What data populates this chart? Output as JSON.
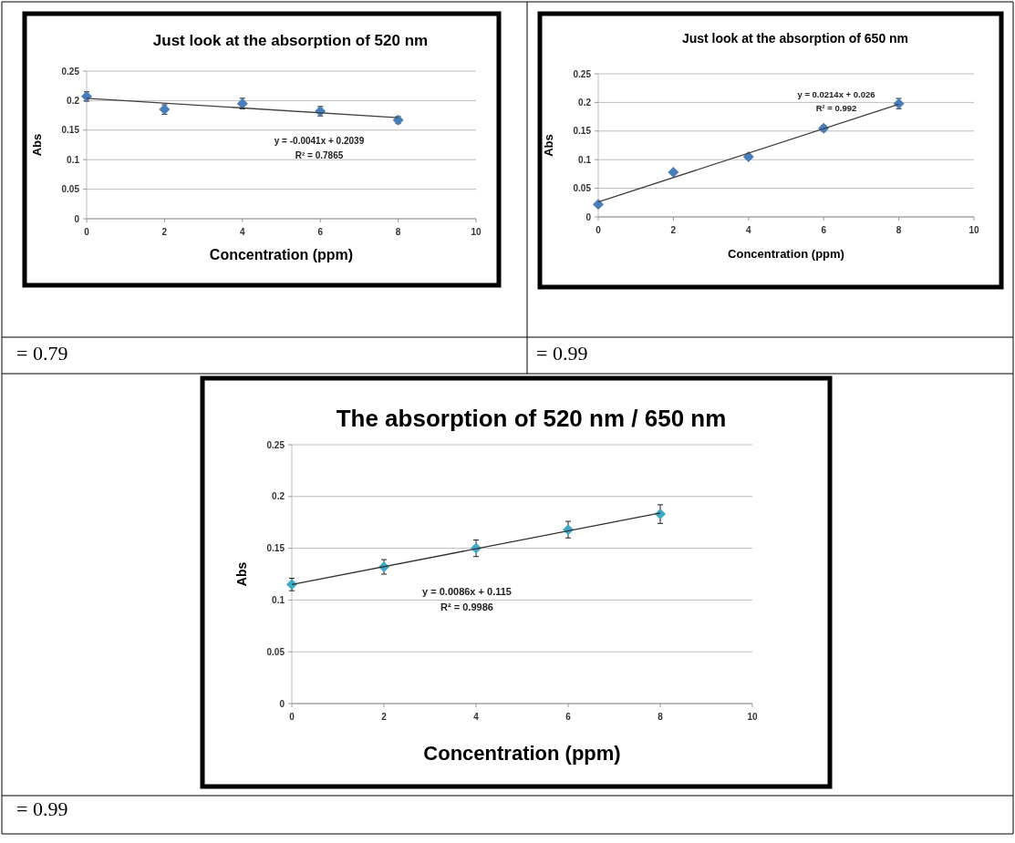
{
  "chart_data": [
    {
      "type": "scatter",
      "title": "Just look at the absorption of 520 nm",
      "xlabel": "Concentration (ppm)",
      "ylabel": "Abs",
      "xlim": [
        0,
        10
      ],
      "xticks": [
        0,
        2,
        4,
        6,
        8,
        10
      ],
      "ylim": [
        0,
        0.25
      ],
      "yticks": [
        0,
        0.05,
        0.1,
        0.15,
        0.2,
        0.25
      ],
      "grid": "y",
      "series": [
        {
          "marker": "diamond",
          "color": "#4a7ebb",
          "x": [
            0,
            2,
            4,
            6,
            8
          ],
          "values": [
            0.207,
            0.185,
            0.195,
            0.182,
            0.167
          ],
          "errors": [
            0.008,
            0.008,
            0.009,
            0.008,
            0.006
          ]
        },
        {
          "type": "line",
          "color": "#404040",
          "x": [
            0,
            8
          ],
          "values": [
            0.204,
            0.171
          ]
        }
      ],
      "annotations": [
        "y = -0.0041x + 0.2039",
        "R² = 0.7865",
        "= 0.79"
      ]
    },
    {
      "type": "scatter",
      "title": "Just look at the absorption of  650 nm",
      "xlabel": "Concentration (ppm)",
      "ylabel": "Abs",
      "xlim": [
        0,
        10
      ],
      "xticks": [
        0,
        2,
        4,
        6,
        8,
        10
      ],
      "ylim": [
        0,
        0.25
      ],
      "yticks": [
        0,
        0.05,
        0.1,
        0.15,
        0.2,
        0.25
      ],
      "grid": "y",
      "series": [
        {
          "marker": "diamond",
          "color": "#4a7ebb",
          "x": [
            0,
            2,
            4,
            6,
            8
          ],
          "values": [
            0.022,
            0.078,
            0.105,
            0.155,
            0.198
          ],
          "errors": [
            0.003,
            null,
            0.003,
            0.005,
            0.009
          ]
        },
        {
          "type": "line",
          "color": "#404040",
          "x": [
            0,
            8
          ],
          "values": [
            0.026,
            0.197
          ]
        }
      ],
      "annotations": [
        "y = 0.0214x + 0.026",
        "R² = 0.992",
        "= 0.99"
      ]
    },
    {
      "type": "scatter",
      "title": "The absorption of  520 nm / 650 nm",
      "xlabel": "Concentration (ppm)",
      "ylabel": "Abs",
      "xlim": [
        0,
        10
      ],
      "xticks": [
        0,
        2,
        4,
        6,
        8,
        10
      ],
      "ylim": [
        0,
        0.25
      ],
      "yticks": [
        0,
        0.05,
        0.1,
        0.15,
        0.2,
        0.25
      ],
      "grid": "y",
      "series": [
        {
          "marker": "diamond",
          "color": "#3fa9c5",
          "x": [
            0,
            2,
            4,
            6,
            8
          ],
          "values": [
            0.115,
            0.132,
            0.15,
            0.168,
            0.183
          ],
          "errors": [
            0.006,
            0.007,
            0.008,
            0.008,
            0.009
          ]
        },
        {
          "type": "line",
          "color": "#303030",
          "x": [
            0,
            8
          ],
          "values": [
            0.115,
            0.184
          ]
        }
      ],
      "annotations": [
        "y = 0.0086x + 0.115",
        "R² = 0.9986",
        "= 0.99"
      ]
    }
  ]
}
